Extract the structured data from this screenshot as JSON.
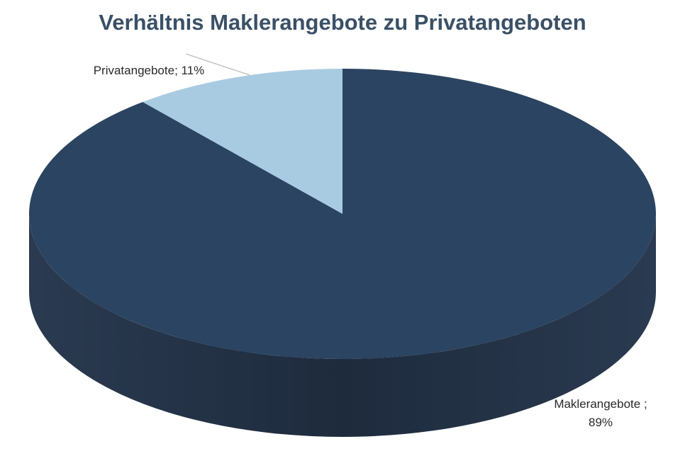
{
  "chart_data": {
    "type": "pie",
    "title": "Verhältnis Maklerangebote zu Privatangeboten",
    "values": [
      89,
      11
    ],
    "value_labels": [
      "Maklerangebote ; 89%",
      "Privatangebote; 11%"
    ],
    "colors": [
      "#2b4461",
      "#a9cbe1"
    ]
  }
}
